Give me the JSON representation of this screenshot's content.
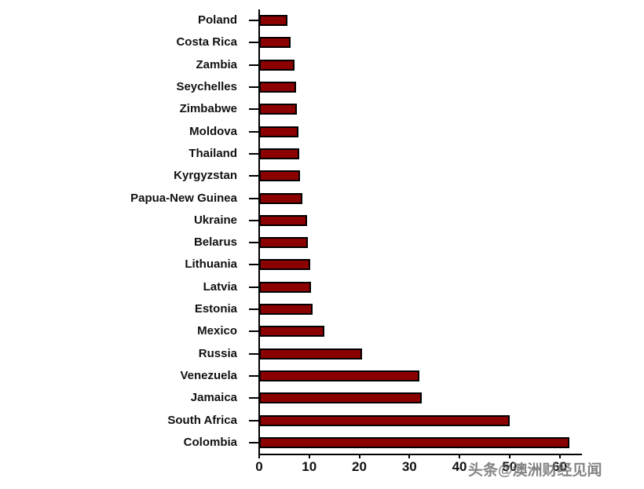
{
  "watermark": "头条@澳洲财经见闻",
  "chart_data": {
    "type": "bar",
    "orientation": "horizontal",
    "title": "",
    "xlabel": "",
    "ylabel": "",
    "categories": [
      "Poland",
      "Costa Rica",
      "Zambia",
      "Seychelles",
      "Zimbabwe",
      "Moldova",
      "Thailand",
      "Kyrgyzstan",
      "Papua-New Guinea",
      "Ukraine",
      "Belarus",
      "Lithuania",
      "Latvia",
      "Estonia",
      "Mexico",
      "Russia",
      "Venezuela",
      "Jamaica",
      "South Africa",
      "Colombia"
    ],
    "values": [
      5.6,
      6.2,
      7.0,
      7.3,
      7.5,
      7.8,
      8.0,
      8.1,
      8.6,
      9.5,
      9.8,
      10.2,
      10.4,
      10.6,
      13.0,
      20.5,
      32.0,
      32.5,
      50.0,
      62.0
    ],
    "xlim": [
      0,
      64.3
    ],
    "xticks": [
      0,
      10,
      20,
      30,
      40,
      50,
      60
    ],
    "grid": false,
    "legend": "none",
    "bar_color": "#8b0000",
    "bar_border_color": "#000000",
    "axis_color": "#000000"
  }
}
